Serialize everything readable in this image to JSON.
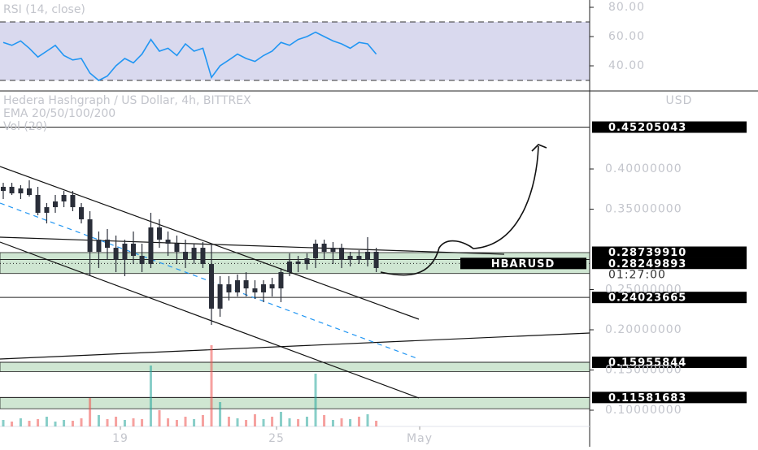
{
  "chart_data": {
    "type": "candlestick",
    "title": "Hedera Hashgraph / US Dollar, 4h, BITTREX",
    "indicators_label": "EMA 20/50/100/200",
    "volume_label": "Vol (20)",
    "axis_label": "USD",
    "symbol": "HBARUSD",
    "countdown": "01:27:00",
    "color": "#2a2e39",
    "x": [
      14.5,
      14.83,
      15.17,
      15.5,
      15.83,
      16.17,
      16.5,
      16.83,
      17.17,
      17.5,
      17.83,
      18.17,
      18.5,
      18.83,
      19.17,
      19.5,
      19.83,
      20.17,
      20.5,
      20.83,
      21.17,
      21.5,
      21.83,
      22.17,
      22.5,
      22.83,
      23.17,
      23.5,
      23.83,
      24.17,
      24.5,
      24.83,
      25.17,
      25.5,
      25.83,
      26.17,
      26.5,
      26.83,
      27.17,
      27.5,
      27.83,
      28.17,
      28.5,
      28.83
    ],
    "open": [
      0.3727,
      0.3778,
      0.3697,
      0.3758,
      0.3677,
      0.3455,
      0.3525,
      0.3596,
      0.3677,
      0.3525,
      0.3374,
      0.297,
      0.3121,
      0.302,
      0.2869,
      0.3071,
      0.2919,
      0.2818,
      0.3273,
      0.3121,
      0.3071,
      0.297,
      0.2869,
      0.302,
      0.2818,
      0.2263,
      0.2566,
      0.2465,
      0.2616,
      0.2515,
      0.2465,
      0.2566,
      0.2515,
      0.2717,
      0.2849,
      0.2818,
      0.2889,
      0.3071,
      0.297,
      0.302,
      0.2869,
      0.2919,
      0.2869,
      0.297
    ],
    "high": [
      0.3828,
      0.3828,
      0.3798,
      0.3859,
      0.3778,
      0.3576,
      0.3677,
      0.3727,
      0.3727,
      0.3576,
      0.3475,
      0.3222,
      0.3253,
      0.3172,
      0.3121,
      0.3222,
      0.3071,
      0.3455,
      0.3374,
      0.3222,
      0.3172,
      0.3121,
      0.3071,
      0.3091,
      0.3071,
      0.2667,
      0.2667,
      0.2687,
      0.2717,
      0.2616,
      0.2616,
      0.2646,
      0.2768,
      0.295,
      0.2919,
      0.295,
      0.3121,
      0.3121,
      0.3091,
      0.3071,
      0.297,
      0.299,
      0.3152,
      0.302
    ],
    "low": [
      0.3626,
      0.3677,
      0.3626,
      0.3657,
      0.3424,
      0.3323,
      0.3455,
      0.3525,
      0.3475,
      0.3323,
      0.2667,
      0.2768,
      0.2869,
      0.2717,
      0.2667,
      0.2818,
      0.2717,
      0.2768,
      0.302,
      0.2919,
      0.2818,
      0.2768,
      0.2818,
      0.2768,
      0.2061,
      0.2162,
      0.2364,
      0.2414,
      0.2414,
      0.2384,
      0.2344,
      0.2414,
      0.2344,
      0.2667,
      0.2717,
      0.2748,
      0.2768,
      0.2869,
      0.2818,
      0.2768,
      0.2788,
      0.2818,
      0.2788,
      0.2717
    ],
    "close": [
      0.3778,
      0.3697,
      0.3758,
      0.3677,
      0.3455,
      0.3525,
      0.3596,
      0.3677,
      0.3525,
      0.3374,
      0.297,
      0.3121,
      0.302,
      0.2869,
      0.3071,
      0.2919,
      0.2818,
      0.3273,
      0.3121,
      0.3071,
      0.297,
      0.2869,
      0.302,
      0.2818,
      0.2263,
      0.2566,
      0.2465,
      0.2616,
      0.2515,
      0.2465,
      0.2566,
      0.2515,
      0.2717,
      0.2849,
      0.2818,
      0.2889,
      0.3071,
      0.297,
      0.302,
      0.2869,
      0.2919,
      0.2869,
      0.297,
      0.2768
    ],
    "volume": [
      8,
      6,
      10,
      7,
      9,
      12,
      6,
      8,
      7,
      10,
      35,
      14,
      9,
      12,
      8,
      10,
      9,
      75,
      20,
      10,
      8,
      12,
      9,
      14,
      100,
      30,
      12,
      10,
      8,
      15,
      9,
      12,
      18,
      10,
      9,
      12,
      65,
      14,
      8,
      10,
      9,
      12,
      15,
      7
    ],
    "volume_lim": [
      0,
      100
    ],
    "up_color": "#26a69a",
    "down_color": "#ef5350",
    "xlim": [
      14.375,
      37.03
    ],
    "xticks": [
      19,
      25,
      {
        "value": 30.5,
        "label": "May"
      }
    ],
    "ylim": [
      0.0798,
      0.497
    ],
    "yticks": [
      {
        "value": 0.4,
        "label": "0.40000000"
      },
      {
        "value": 0.35,
        "label": "0.35000000"
      },
      {
        "value": 0.25,
        "label": "0.25000000"
      },
      {
        "value": 0.2,
        "label": "0.20000000"
      },
      {
        "value": 0.15,
        "label": "0.15000000"
      },
      {
        "value": 0.1,
        "label": "0.10000000"
      }
    ],
    "levels": [
      0.45205043,
      {
        "value": 0.2873991,
        "label": "0.28739910"
      },
      0.28249893,
      0.24023665,
      0.15955844,
      0.11581683
    ],
    "zones": [
      [
        0.27,
        0.296
      ],
      [
        0.148,
        0.1596
      ],
      [
        0.1018,
        0.1158
      ]
    ],
    "zone_color": "#cfe6d2",
    "rsi": {
      "title": "RSI (14, close)",
      "color": "#2196f3",
      "values": [
        56,
        54,
        57,
        52,
        46,
        50,
        54,
        47,
        44,
        45,
        35,
        30,
        33,
        40,
        45,
        42,
        48,
        58,
        50,
        52,
        47,
        55,
        50,
        52,
        32,
        40,
        44,
        48,
        45,
        43,
        47,
        50,
        56,
        54,
        58,
        60,
        63,
        60,
        57,
        55,
        52,
        56,
        55,
        48
      ],
      "ylim": [
        22.8,
        85
      ],
      "yticks": [
        {
          "value": 80,
          "label": "80.00"
        },
        {
          "value": 60,
          "label": "60.00"
        },
        {
          "value": 40,
          "label": "40.00"
        }
      ],
      "band": [
        30,
        70
      ],
      "band_color": "#d9d9ee"
    }
  }
}
